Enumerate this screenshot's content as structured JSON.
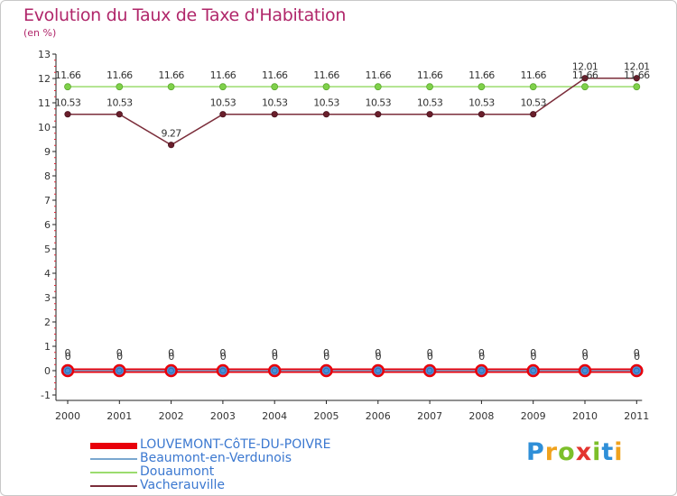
{
  "header": {
    "title": "Evolution du Taux de Taxe d'Habitation",
    "subtitle": "(en %)"
  },
  "logo": {
    "text": "Proxiti",
    "letters": [
      "P",
      "r",
      "o",
      "x",
      "i",
      "t",
      "i"
    ],
    "colors": [
      "#2f8fd8",
      "#f0a21d",
      "#7cbf2a",
      "#e3342f",
      "#7cbf2a",
      "#2f8fd8",
      "#f0a21d"
    ]
  },
  "chart_data": {
    "type": "line",
    "title": "Evolution du Taux de Taxe d'Habitation",
    "ylabel": "(en %)",
    "xlabel": "",
    "x": [
      "2000",
      "2001",
      "2002",
      "2003",
      "2004",
      "2005",
      "2006",
      "2007",
      "2008",
      "2009",
      "2010",
      "2011"
    ],
    "ylim": [
      -1,
      13
    ],
    "yticks": [
      "-1",
      "0",
      "1",
      "2",
      "3",
      "4",
      "5",
      "6",
      "7",
      "8",
      "9",
      "10",
      "11",
      "12",
      "13"
    ],
    "grid": false,
    "legend_position": "bottom-left",
    "series": [
      {
        "name": "LOUVEMONT-CôTE-DU-POIVRE",
        "color": "#e8000b",
        "values": [
          0,
          0,
          0,
          0,
          0,
          0,
          0,
          0,
          0,
          0,
          0,
          0
        ],
        "labels": [
          "0",
          "0",
          "0",
          "0",
          "0",
          "0",
          "0",
          "0",
          "0",
          "0",
          "0",
          "0"
        ]
      },
      {
        "name": "Beaumont-en-Verdunois",
        "color": "#7aa7cf",
        "values": [
          0,
          0,
          0,
          0,
          0,
          0,
          0,
          0,
          0,
          0,
          0,
          0
        ],
        "labels": [
          "0",
          "0",
          "0",
          "0",
          "0",
          "0",
          "0",
          "0",
          "0",
          "0",
          "0",
          "0"
        ]
      },
      {
        "name": "Douaumont",
        "color": "#9bdc6e",
        "values": [
          11.66,
          11.66,
          11.66,
          11.66,
          11.66,
          11.66,
          11.66,
          11.66,
          11.66,
          11.66,
          11.66,
          11.66
        ],
        "labels": [
          "11.66",
          "11.66",
          "11.66",
          "11.66",
          "11.66",
          "11.66",
          "11.66",
          "11.66",
          "11.66",
          "11.66",
          "11.66",
          "11.66"
        ]
      },
      {
        "name": "Vacherauville",
        "color": "#7b2d3a",
        "values": [
          10.53,
          10.53,
          9.27,
          10.53,
          10.53,
          10.53,
          10.53,
          10.53,
          10.53,
          10.53,
          12.01,
          12.01
        ],
        "labels": [
          "10.53",
          "10.53",
          "9.27",
          "10.53",
          "10.53",
          "10.53",
          "10.53",
          "10.53",
          "10.53",
          "10.53",
          "12.01",
          "12.01"
        ]
      }
    ]
  }
}
